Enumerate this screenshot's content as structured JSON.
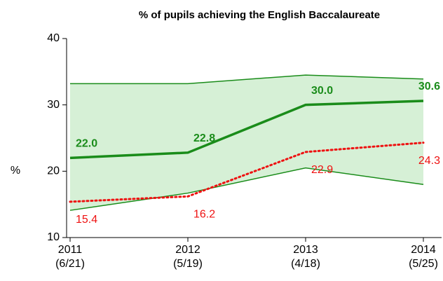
{
  "chart_data": {
    "type": "line",
    "title": "% of pupils achieving the English Baccalaureate",
    "ylabel": "%",
    "categories": [
      "2011",
      "2012",
      "2013",
      "2014"
    ],
    "category_sublabels": [
      "(6/21)",
      "(5/19)",
      "(4/18)",
      "(5/25)"
    ],
    "ylim": [
      10,
      40
    ],
    "yticks": [
      10,
      20,
      30,
      40
    ],
    "band": {
      "color": "#d6f0d6",
      "edge_color": "#1a8c1a",
      "upper": [
        33.2,
        33.2,
        34.5,
        33.9
      ],
      "lower": [
        14.1,
        16.7,
        20.5,
        18.0
      ]
    },
    "series": [
      {
        "color": "#1a8c1a",
        "dash": false,
        "label_position": "above",
        "values": [
          22.0,
          22.8,
          30.0,
          30.6
        ],
        "value_labels": [
          "22.0",
          "22.8",
          "30.0",
          "30.6"
        ]
      },
      {
        "color": "#ee1111",
        "dash": true,
        "label_position": "below",
        "values": [
          15.4,
          16.2,
          22.9,
          24.3
        ]
      }
    ]
  }
}
